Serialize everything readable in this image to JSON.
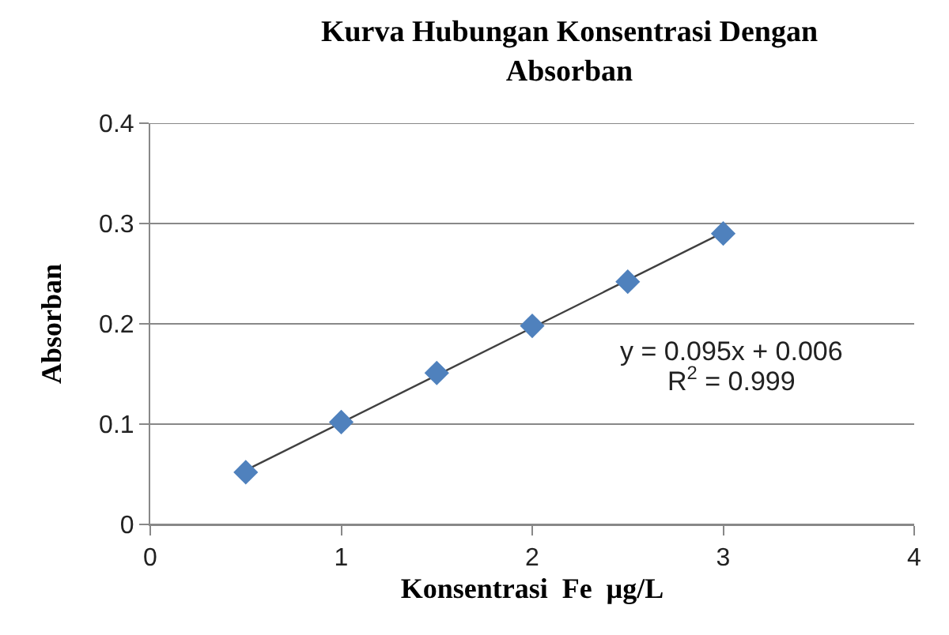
{
  "chart_data": {
    "type": "scatter",
    "title": "Kurva Hubungan Konsentrasi Dengan Absorban",
    "xlabel": "Konsentrasi  Fe  µg/L",
    "ylabel": "Absorban",
    "x": [
      0.5,
      1,
      1.5,
      2,
      2.5,
      3
    ],
    "series": [
      {
        "color": "#4f81bd",
        "values": [
          0.052,
          0.102,
          0.151,
          0.198,
          0.242,
          0.29
        ],
        "marker": "diamond"
      },
      {
        "type": "line",
        "color": "#404040",
        "x": [
          0.5,
          3
        ],
        "values": [
          0.054,
          0.291
        ],
        "marker": "none",
        "line_style": "solid"
      }
    ],
    "xlim": [
      0,
      4
    ],
    "xticks": [
      0,
      1,
      2,
      3,
      4
    ],
    "ylim": [
      0,
      0.4
    ],
    "yticks": [
      0,
      0.1,
      0.2,
      0.3,
      0.4
    ],
    "grid": "y",
    "annotations": [
      "y = 0.095x + 0.006",
      "R$^{2}$ = 0.999"
    ]
  }
}
